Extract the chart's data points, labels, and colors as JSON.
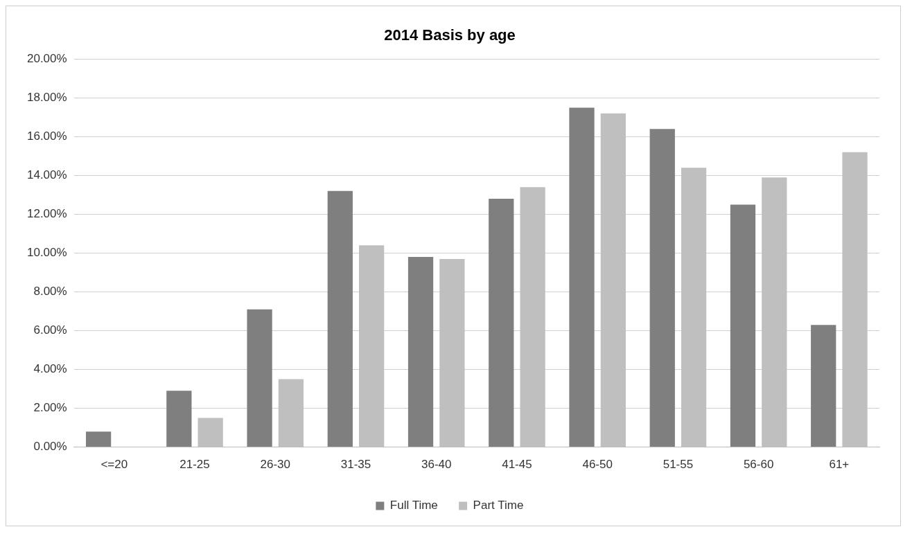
{
  "chart_data": {
    "type": "bar",
    "title": "2014 Basis by age",
    "categories": [
      "<=20",
      "21-25",
      "26-30",
      "31-35",
      "36-40",
      "41-45",
      "46-50",
      "51-55",
      "56-60",
      "61+"
    ],
    "series": [
      {
        "name": "Full Time",
        "color": "#7f7f7f",
        "values": [
          0.8,
          2.9,
          7.1,
          13.2,
          9.8,
          12.8,
          17.5,
          16.4,
          12.5,
          6.3
        ]
      },
      {
        "name": "Part Time",
        "color": "#bfbfbf",
        "values": [
          0,
          1.5,
          3.5,
          10.4,
          9.7,
          13.4,
          17.2,
          14.4,
          13.9,
          15.2
        ]
      }
    ],
    "ylim": [
      0,
      20
    ],
    "yticks": [
      {
        "value": 0,
        "label": "0.00%"
      },
      {
        "value": 2,
        "label": "2.00%"
      },
      {
        "value": 4,
        "label": "4.00%"
      },
      {
        "value": 6,
        "label": "6.00%"
      },
      {
        "value": 8,
        "label": "8.00%"
      },
      {
        "value": 10,
        "label": "10.00%"
      },
      {
        "value": 12,
        "label": "12.00%"
      },
      {
        "value": 14,
        "label": "14.00%"
      },
      {
        "value": 16,
        "label": "16.00%"
      },
      {
        "value": 18,
        "label": "18.00%"
      },
      {
        "value": 20,
        "label": "20.00%"
      }
    ],
    "grid": "y",
    "legend": "bottom"
  }
}
